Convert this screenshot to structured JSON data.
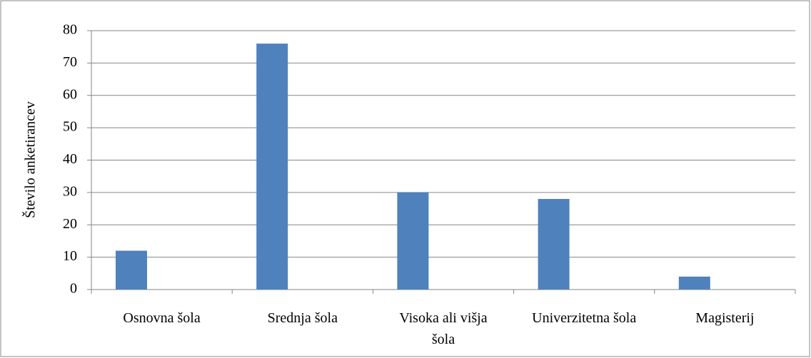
{
  "chart_data": {
    "type": "bar",
    "ylabel": "Število anketirancev",
    "categories": [
      "Osnovna šola",
      "Srednja šola",
      "Visoka ali višja šola",
      "Univerzitetna šola",
      "Magisterij"
    ],
    "values": [
      12,
      76,
      30,
      28,
      4
    ],
    "color": "#4f81bd",
    "ylim": [
      0,
      80
    ],
    "yticks": [
      0,
      10,
      20,
      30,
      40,
      50,
      60,
      70,
      80
    ],
    "grid": true
  }
}
